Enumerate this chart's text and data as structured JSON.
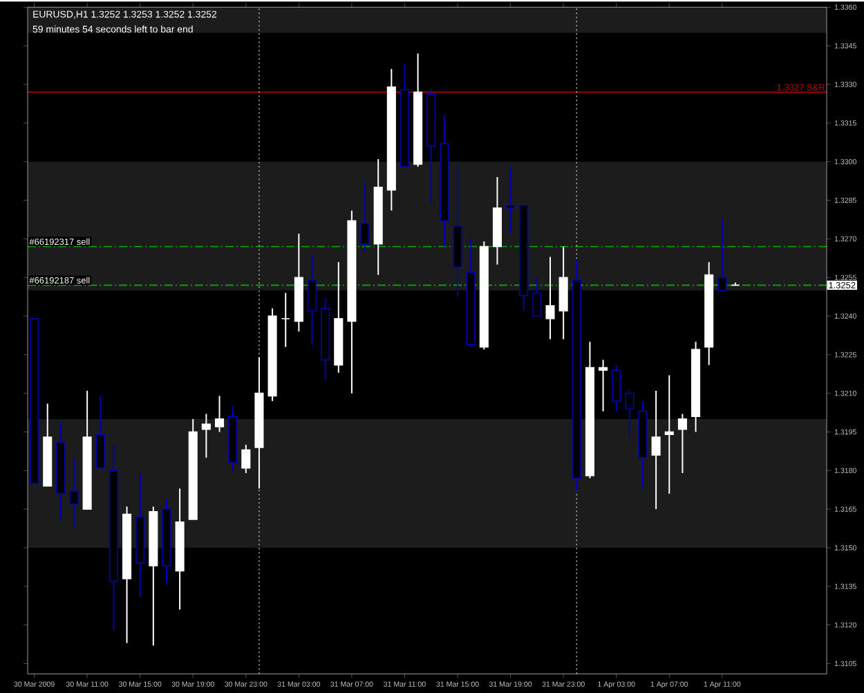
{
  "chart_data": {
    "type": "candlestick",
    "title": "EURUSD,H1  1.3252 1.3253 1.3252 1.3252",
    "subtitle": "59 minutes 54 seconds left to bar end",
    "x": [
      "2009-03-30T07:00",
      "2009-03-30T08:00",
      "2009-03-30T09:00",
      "2009-03-30T10:00",
      "2009-03-30T11:00",
      "2009-03-30T12:00",
      "2009-03-30T13:00",
      "2009-03-30T14:00",
      "2009-03-30T15:00",
      "2009-03-30T16:00",
      "2009-03-30T17:00",
      "2009-03-30T18:00",
      "2009-03-30T19:00",
      "2009-03-30T20:00",
      "2009-03-30T21:00",
      "2009-03-30T22:00",
      "2009-03-30T23:00",
      "2009-03-31T00:00",
      "2009-03-31T01:00",
      "2009-03-31T02:00",
      "2009-03-31T03:00",
      "2009-03-31T04:00",
      "2009-03-31T05:00",
      "2009-03-31T06:00",
      "2009-03-31T07:00",
      "2009-03-31T08:00",
      "2009-03-31T09:00",
      "2009-03-31T10:00",
      "2009-03-31T11:00",
      "2009-03-31T12:00",
      "2009-03-31T13:00",
      "2009-03-31T14:00",
      "2009-03-31T15:00",
      "2009-03-31T16:00",
      "2009-03-31T17:00",
      "2009-03-31T18:00",
      "2009-03-31T19:00",
      "2009-03-31T20:00",
      "2009-03-31T21:00",
      "2009-03-31T22:00",
      "2009-03-31T23:00",
      "2009-04-01T00:00",
      "2009-04-01T01:00",
      "2009-04-01T02:00",
      "2009-04-01T03:00",
      "2009-04-01T04:00",
      "2009-04-01T05:00",
      "2009-04-01T06:00",
      "2009-04-01T07:00",
      "2009-04-01T08:00",
      "2009-04-01T09:00",
      "2009-04-01T10:00",
      "2009-04-01T11:00",
      "2009-04-01T12:00"
    ],
    "ohlc": [
      [
        1.3239,
        1.3239,
        1.3175,
        1.3175
      ],
      [
        1.3174,
        1.3206,
        1.3174,
        1.3193
      ],
      [
        1.3191,
        1.3199,
        1.3161,
        1.3171
      ],
      [
        1.3172,
        1.3185,
        1.3158,
        1.3167
      ],
      [
        1.3165,
        1.3211,
        1.3165,
        1.3193
      ],
      [
        1.3194,
        1.3209,
        1.3181,
        1.3181
      ],
      [
        1.318,
        1.319,
        1.3118,
        1.3137
      ],
      [
        1.3138,
        1.3166,
        1.3113,
        1.3163
      ],
      [
        1.3162,
        1.3179,
        1.3131,
        1.3144
      ],
      [
        1.3143,
        1.3166,
        1.3112,
        1.3164
      ],
      [
        1.3165,
        1.3169,
        1.3136,
        1.3143
      ],
      [
        1.3141,
        1.3173,
        1.3126,
        1.316
      ],
      [
        1.3161,
        1.32,
        1.3161,
        1.3195
      ],
      [
        1.3196,
        1.3202,
        1.3185,
        1.3198
      ],
      [
        1.3197,
        1.3209,
        1.3195,
        1.32
      ],
      [
        1.3201,
        1.3205,
        1.318,
        1.3183
      ],
      [
        1.3181,
        1.319,
        1.3179,
        1.3188
      ],
      [
        1.3189,
        1.3224,
        1.3173,
        1.321
      ],
      [
        1.3209,
        1.3243,
        1.3207,
        1.324
      ],
      [
        1.3239,
        1.3249,
        1.3228,
        1.3239
      ],
      [
        1.3238,
        1.3272,
        1.3234,
        1.3255
      ],
      [
        1.3254,
        1.3264,
        1.3229,
        1.3242
      ],
      [
        1.3243,
        1.3247,
        1.3215,
        1.3223
      ],
      [
        1.3221,
        1.3261,
        1.3218,
        1.3239
      ],
      [
        1.3238,
        1.3281,
        1.321,
        1.3277
      ],
      [
        1.3276,
        1.3292,
        1.3265,
        1.3268
      ],
      [
        1.3268,
        1.3301,
        1.3256,
        1.329
      ],
      [
        1.3289,
        1.3336,
        1.3281,
        1.3329
      ],
      [
        1.3328,
        1.3338,
        1.3298,
        1.3298
      ],
      [
        1.3299,
        1.3342,
        1.3298,
        1.3327
      ],
      [
        1.3326,
        1.3328,
        1.3284,
        1.3306
      ],
      [
        1.3307,
        1.3318,
        1.3267,
        1.3277
      ],
      [
        1.3275,
        1.3299,
        1.3248,
        1.3259
      ],
      [
        1.3257,
        1.327,
        1.3228,
        1.3229
      ],
      [
        1.3228,
        1.3269,
        1.3227,
        1.3267
      ],
      [
        1.3267,
        1.3294,
        1.326,
        1.3282
      ],
      [
        1.3283,
        1.3298,
        1.3272,
        1.3282
      ],
      [
        1.3283,
        1.3283,
        1.3242,
        1.3248
      ],
      [
        1.3249,
        1.3255,
        1.324,
        1.324
      ],
      [
        1.3239,
        1.3263,
        1.3231,
        1.3244
      ],
      [
        1.3242,
        1.3267,
        1.3231,
        1.3255
      ],
      [
        1.3254,
        1.3262,
        1.3172,
        1.3177
      ],
      [
        1.3178,
        1.323,
        1.3177,
        1.322
      ],
      [
        1.3219,
        1.3223,
        1.3203,
        1.322
      ],
      [
        1.3219,
        1.3221,
        1.3203,
        1.3207
      ],
      [
        1.321,
        1.3211,
        1.3193,
        1.3204
      ],
      [
        1.3203,
        1.3207,
        1.3173,
        1.3185
      ],
      [
        1.3186,
        1.3211,
        1.3165,
        1.3193
      ],
      [
        1.3194,
        1.3217,
        1.3171,
        1.3195
      ],
      [
        1.3196,
        1.3202,
        1.3179,
        1.32
      ],
      [
        1.3201,
        1.323,
        1.3195,
        1.3227
      ],
      [
        1.3228,
        1.3261,
        1.3221,
        1.3256
      ],
      [
        1.3255,
        1.3278,
        1.325,
        1.325
      ],
      [
        1.3252,
        1.3253,
        1.3252,
        1.3252
      ]
    ],
    "colors": [
      "#0000b4",
      "#ffffff",
      "#0000b4",
      "#0000b4",
      "#ffffff",
      "#0000b4",
      "#0000b4",
      "#ffffff",
      "#0000b4",
      "#ffffff",
      "#0000b4",
      "#ffffff",
      "#ffffff",
      "#ffffff",
      "#ffffff",
      "#0000b4",
      "#ffffff",
      "#ffffff",
      "#ffffff",
      "#ffffff",
      "#ffffff",
      "#0000b4",
      "#0000b4",
      "#ffffff",
      "#ffffff",
      "#0000b4",
      "#ffffff",
      "#ffffff",
      "#0000b4",
      "#ffffff",
      "#0000b4",
      "#0000b4",
      "#0000b4",
      "#0000b4",
      "#ffffff",
      "#ffffff",
      "#0000b4",
      "#0000b4",
      "#0000b4",
      "#ffffff",
      "#ffffff",
      "#0000b4",
      "#ffffff",
      "#ffffff",
      "#0000b4",
      "#0000b4",
      "#0000b4",
      "#ffffff",
      "#ffffff",
      "#ffffff",
      "#ffffff",
      "#ffffff",
      "#0000b4",
      "#ffffff"
    ],
    "xlim": [
      "2009-03-30T06:30",
      "2009-04-01T18:54"
    ],
    "xticks": [
      {
        "value": "2009-03-30T07:00",
        "label": "30 Mar 2009"
      },
      {
        "value": "2009-03-30T11:00",
        "label": "30 Mar 11:00"
      },
      {
        "value": "2009-03-30T15:00",
        "label": "30 Mar 15:00"
      },
      {
        "value": "2009-03-30T19:00",
        "label": "30 Mar 19:00"
      },
      {
        "value": "2009-03-30T23:00",
        "label": "30 Mar 23:00"
      },
      {
        "value": "2009-03-31T03:00",
        "label": "31 Mar 03:00"
      },
      {
        "value": "2009-03-31T07:00",
        "label": "31 Mar 07:00"
      },
      {
        "value": "2009-03-31T11:00",
        "label": "31 Mar 11:00"
      },
      {
        "value": "2009-03-31T15:00",
        "label": "31 Mar 15:00"
      },
      {
        "value": "2009-03-31T19:00",
        "label": "31 Mar 19:00"
      },
      {
        "value": "2009-03-31T23:00",
        "label": "31 Mar 23:00"
      },
      {
        "value": "2009-04-01T03:00",
        "label": "1 Apr 03:00"
      },
      {
        "value": "2009-04-01T07:00",
        "label": "1 Apr 07:00"
      },
      {
        "value": "2009-04-01T11:00",
        "label": "1 Apr 11:00"
      }
    ],
    "ylim": [
      1.3101,
      1.336
    ],
    "yticks": [
      1.3105,
      {
        "value": 1.312,
        "label": "1.3120"
      },
      1.3135,
      {
        "value": 1.315,
        "label": "1.3150"
      },
      1.3165,
      {
        "value": 1.318,
        "label": "1.3180"
      },
      1.3195,
      {
        "value": 1.321,
        "label": "1.3210"
      },
      1.3225,
      {
        "value": 1.324,
        "label": "1.3240"
      },
      1.3255,
      {
        "value": 1.327,
        "label": "1.3270"
      },
      1.3285,
      {
        "value": 1.33,
        "label": "1.3300"
      },
      1.3315,
      {
        "value": 1.333,
        "label": "1.3330"
      },
      1.3345,
      {
        "value": 1.336,
        "label": "1.3360"
      }
    ],
    "bands": [
      {
        "axis": "y",
        "from": 1.315,
        "to": 1.32,
        "color": "#1c1c1c"
      },
      {
        "axis": "y",
        "from": 1.325,
        "to": 1.33,
        "color": "#1c1c1c"
      },
      {
        "axis": "y",
        "from": 1.335,
        "to": 1.336,
        "color": "#1c1c1c"
      }
    ],
    "ref_lines": [
      {
        "axis": "y",
        "value": 1.3327,
        "label": "1.3327 S&R",
        "color": "#c00000",
        "line_style": "solid"
      },
      {
        "axis": "y",
        "value": 1.3267,
        "label": "#66192317 sell",
        "color": "#00b000",
        "line_style": "dashed"
      },
      {
        "axis": "y",
        "value": 1.3252,
        "label": "#66192187 sell",
        "color": "#00b000",
        "line_style": "dashed"
      },
      {
        "axis": "x",
        "value": "2009-03-31T00:00",
        "color": "#c0c0c0",
        "line_style": "dotted"
      },
      {
        "axis": "x",
        "value": "2009-04-01T00:00",
        "color": "#c0c0c0",
        "line_style": "dotted"
      }
    ],
    "annotations": [
      {
        "text": "1.3252",
        "y": 1.3252
      }
    ]
  }
}
